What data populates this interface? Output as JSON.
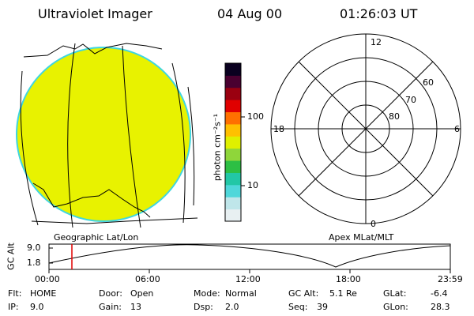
{
  "header": {
    "instrument": "Ultraviolet Imager",
    "date": "04 Aug 00",
    "time": "01:26:03 UT"
  },
  "colors": {
    "earth_fill": "#e8f200",
    "earth_limb": "#3fd6e0",
    "colorbar": [
      "#e8f0f2",
      "#bfe6ea",
      "#4fd7da",
      "#22c7a6",
      "#2dbf44",
      "#8fd63a",
      "#dff000",
      "#ffc000",
      "#ff7000",
      "#e00000",
      "#9a0010",
      "#4a0030",
      "#0a0020"
    ],
    "cursor": "#e00000"
  },
  "colorbar": {
    "unit_label": "photon cm⁻²s⁻¹",
    "ticks": [
      "100",
      "10"
    ]
  },
  "polar_plot": {
    "title": "Apex MLat/MLT",
    "mlt_labels": {
      "top": "12",
      "left": "18",
      "right": "6",
      "bottom": "0"
    },
    "lat_labels": [
      "60",
      "70",
      "80"
    ]
  },
  "geo_plot": {
    "title": "Geographic Lat/Lon"
  },
  "altitude_plot": {
    "ylabel": "GC Alt",
    "yticks": [
      "9.0",
      "1.8"
    ],
    "xticks": [
      "00:00",
      "06:00",
      "12:00",
      "18:00",
      "23:59"
    ]
  },
  "status": {
    "flt_label": "Flt:",
    "flt_value": "HOME",
    "ip_label": "IP:",
    "ip_value": "9.0",
    "door_label": "Door:",
    "door_value": "Open",
    "gain_label": "Gain:",
    "gain_value": "13",
    "mode_label": "Mode:",
    "mode_value": "Normal",
    "dsp_label": "Dsp:",
    "dsp_value": "2.0",
    "gcalt_label": "GC Alt:",
    "gcalt_value": "5.1 Re",
    "seq_label": "Seq:",
    "seq_value": "39",
    "glat_label": "GLat:",
    "glat_value": "-6.4",
    "glon_label": "GLon:",
    "glon_value": "28.3"
  }
}
